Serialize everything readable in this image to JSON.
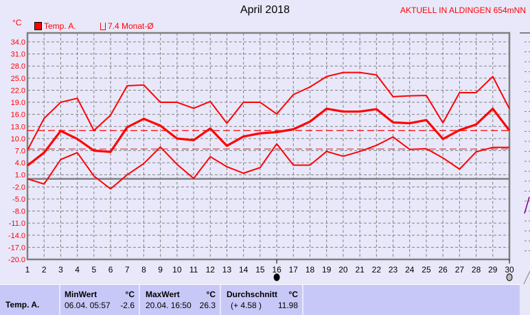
{
  "header": {
    "title": "April 2018",
    "station": "AKTUELL IN ALDINGEN 654mNN",
    "unit": "°C"
  },
  "legend": [
    {
      "label": "Temp. A.",
      "color": "#ff0000",
      "filled": true
    },
    {
      "label": "7.4 Monat-Ø",
      "color": "#ff0000",
      "filled": false
    }
  ],
  "colors": {
    "series": "#ff0000",
    "grid": "#808080",
    "background": "#e8e8fa",
    "panel": "#c8c8f8"
  },
  "chart_data": {
    "type": "line",
    "title": "April 2018",
    "ylabel": "°C",
    "ylim": [
      -20,
      34
    ],
    "yticks": [
      "34.0",
      "31.0",
      "28.0",
      "25.0",
      "22.0",
      "19.0",
      "16.0",
      "13.0",
      "10.0",
      "7.0",
      "4.0",
      "1.0",
      "-2.0",
      "-5.0",
      "-8.0",
      "-11.0",
      "-14.0",
      "-17.0",
      "-20.0"
    ],
    "x": [
      1,
      2,
      3,
      4,
      5,
      6,
      7,
      8,
      9,
      10,
      11,
      12,
      13,
      14,
      15,
      16,
      17,
      18,
      19,
      20,
      21,
      22,
      23,
      24,
      25,
      26,
      27,
      28,
      29,
      30
    ],
    "grid": true,
    "series": [
      {
        "role": "max",
        "values": [
          7.1,
          15.0,
          19.0,
          20.0,
          12.0,
          15.8,
          23.1,
          23.3,
          19.0,
          19.0,
          17.5,
          19.2,
          13.8,
          19.0,
          19.0,
          16.1,
          20.9,
          22.8,
          25.4,
          26.4,
          26.4,
          25.8,
          20.4,
          20.6,
          20.7,
          13.9,
          21.4,
          21.4,
          25.4,
          17.4
        ]
      },
      {
        "role": "mean",
        "values": [
          3.3,
          6.5,
          11.9,
          9.9,
          7.0,
          6.7,
          12.8,
          14.9,
          13.2,
          10.0,
          9.6,
          12.5,
          8.2,
          10.5,
          11.3,
          11.6,
          12.3,
          14.2,
          17.4,
          16.7,
          16.7,
          17.3,
          14.0,
          13.8,
          14.6,
          9.9,
          12.1,
          13.5,
          17.4,
          12.0
        ]
      },
      {
        "role": "min",
        "values": [
          0.0,
          -1.3,
          4.8,
          6.5,
          0.7,
          -2.5,
          1.0,
          3.8,
          7.9,
          3.6,
          0.1,
          5.5,
          3.0,
          1.4,
          2.8,
          8.7,
          3.4,
          3.4,
          6.8,
          5.6,
          6.8,
          8.3,
          10.4,
          7.3,
          7.5,
          5.2,
          2.4,
          6.7,
          7.8,
          7.8
        ]
      }
    ],
    "reference_lines": [
      {
        "value": 11.98,
        "style": "dashed"
      },
      {
        "value": 7.4,
        "style": "dashed",
        "label": "7.4 Monat-Ø"
      }
    ],
    "markers": [
      {
        "day": 16,
        "style": "filled"
      },
      {
        "day": 30,
        "style": "hatched"
      }
    ]
  },
  "table": {
    "row_label": "Temp. A.",
    "min": {
      "header": "MinWert",
      "unit": "°C",
      "date": "06.04.  05:57",
      "value": "-2.6"
    },
    "max": {
      "header": "MaxWert",
      "unit": "°C",
      "date": "20.04.  16:50",
      "value": "26.3"
    },
    "avg": {
      "header": "Durchschnitt",
      "unit": "°C",
      "diff": "(+ 4.58 )",
      "value": "11.98"
    }
  }
}
